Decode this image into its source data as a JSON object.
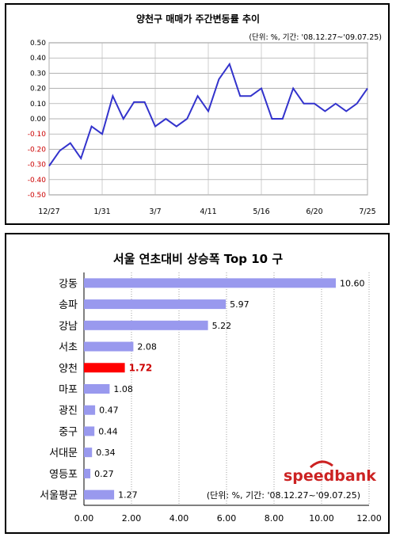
{
  "chart_data": [
    {
      "type": "line",
      "title": "양천구 매매가 주간변동률 추이",
      "subtitle": "(단위: %, 기간: '08.12.27~'09.07.25)",
      "watermark": "speedbank",
      "ylim": [
        -0.5,
        0.5
      ],
      "y_ticks": [
        "0.50",
        "0.40",
        "0.30",
        "0.20",
        "0.10",
        "0.00",
        "-0.10",
        "-0.20",
        "-0.30",
        "-0.40",
        "-0.50"
      ],
      "x_ticks": [
        "12/27",
        "1/31",
        "3/7",
        "4/11",
        "5/16",
        "6/20",
        "7/25"
      ],
      "grid": true,
      "series": [
        {
          "values": [
            -0.31,
            -0.21,
            -0.16,
            -0.26,
            -0.05,
            -0.1,
            0.15,
            0.0,
            0.11,
            0.11,
            -0.05,
            0.0,
            -0.05,
            0.0,
            0.15,
            0.05,
            0.26,
            0.36,
            0.15,
            0.15,
            0.2,
            0.0,
            0.0,
            0.2,
            0.1,
            0.1,
            0.05,
            0.1,
            0.05,
            0.1,
            0.2
          ]
        }
      ],
      "colors": {
        "line": "#3333cc",
        "negative_tick": "#cc0000",
        "plot_bg": "#ffffff"
      }
    },
    {
      "type": "bar",
      "orientation": "horizontal",
      "title": "서울 연초대비 상승폭 Top 10 구",
      "note": "(단위: %, 기간: '08.12.27~'09.07.25)",
      "watermark": "speedbank",
      "categories": [
        "강동",
        "송파",
        "강남",
        "서초",
        "양천",
        "마포",
        "광진",
        "중구",
        "서대문",
        "영등포",
        "서울평균"
      ],
      "values": [
        10.6,
        5.97,
        5.22,
        2.08,
        1.72,
        1.08,
        0.47,
        0.44,
        0.34,
        0.27,
        1.27
      ],
      "value_labels": [
        "10.60",
        "5.97",
        "5.22",
        "2.08",
        "1.72",
        "1.08",
        "0.47",
        "0.44",
        "0.34",
        "0.27",
        "1.27"
      ],
      "highlight_index": 4,
      "xlim": [
        0,
        12
      ],
      "x_ticks": [
        "0.00",
        "2.00",
        "4.00",
        "6.00",
        "8.00",
        "10.00",
        "12.00"
      ],
      "grid": true,
      "colors": {
        "bar": "#9999ee",
        "highlight": "#ff0000",
        "highlight_label": "#cc0000"
      }
    }
  ]
}
